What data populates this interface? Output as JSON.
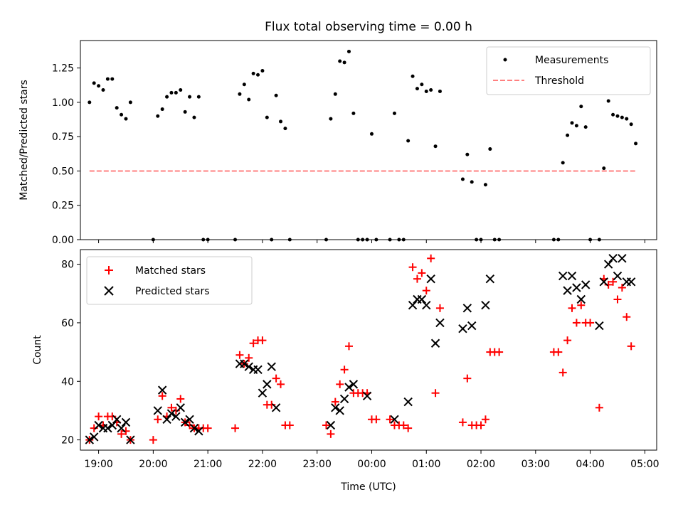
{
  "chart_data": [
    {
      "type": "scatter",
      "title": "Flux total observing time = 0.00 h",
      "xlabel": "",
      "ylabel": "Matched/Predicted stars",
      "ylim": [
        0,
        1.45
      ],
      "xlim": [
        "18:40",
        "05:13"
      ],
      "yticks": [
        "0.00",
        "0.25",
        "0.50",
        "0.75",
        "1.00",
        "1.25"
      ],
      "legend_position": "top-right",
      "series": [
        {
          "name": "Measurements",
          "color": "#000000",
          "points": [
            [
              "18:50",
              1.0
            ],
            [
              "18:55",
              1.14
            ],
            [
              "19:00",
              1.12
            ],
            [
              "19:05",
              1.09
            ],
            [
              "19:10",
              1.17
            ],
            [
              "19:15",
              1.17
            ],
            [
              "19:20",
              0.96
            ],
            [
              "19:25",
              0.91
            ],
            [
              "19:30",
              0.88
            ],
            [
              "19:35",
              1.0
            ],
            [
              "20:00",
              0.0
            ],
            [
              "20:05",
              0.9
            ],
            [
              "20:10",
              0.95
            ],
            [
              "20:15",
              1.04
            ],
            [
              "20:20",
              1.07
            ],
            [
              "20:25",
              1.07
            ],
            [
              "20:30",
              1.09
            ],
            [
              "20:35",
              0.93
            ],
            [
              "20:40",
              1.04
            ],
            [
              "20:45",
              0.89
            ],
            [
              "20:50",
              1.04
            ],
            [
              "20:55",
              0.0
            ],
            [
              "21:00",
              0.0
            ],
            [
              "21:30",
              0.0
            ],
            [
              "21:35",
              1.06
            ],
            [
              "21:40",
              1.13
            ],
            [
              "21:45",
              1.02
            ],
            [
              "21:50",
              1.21
            ],
            [
              "21:55",
              1.2
            ],
            [
              "22:00",
              1.23
            ],
            [
              "22:05",
              0.89
            ],
            [
              "22:10",
              0.0
            ],
            [
              "22:15",
              1.05
            ],
            [
              "22:20",
              0.86
            ],
            [
              "22:25",
              0.81
            ],
            [
              "22:30",
              0.0
            ],
            [
              "23:10",
              0.0
            ],
            [
              "23:15",
              0.88
            ],
            [
              "23:20",
              1.06
            ],
            [
              "23:25",
              1.3
            ],
            [
              "23:30",
              1.29
            ],
            [
              "23:35",
              1.37
            ],
            [
              "23:40",
              0.92
            ],
            [
              "23:45",
              0.0
            ],
            [
              "23:50",
              0.0
            ],
            [
              "23:55",
              0.0
            ],
            [
              "00:00",
              0.77
            ],
            [
              "00:05",
              0.0
            ],
            [
              "00:20",
              0.0
            ],
            [
              "00:25",
              0.92
            ],
            [
              "00:30",
              0.0
            ],
            [
              "00:35",
              0.0
            ],
            [
              "00:40",
              0.72
            ],
            [
              "00:45",
              1.19
            ],
            [
              "00:50",
              1.1
            ],
            [
              "00:55",
              1.13
            ],
            [
              "01:00",
              1.08
            ],
            [
              "01:05",
              1.09
            ],
            [
              "01:10",
              0.68
            ],
            [
              "01:15",
              1.08
            ],
            [
              "01:40",
              0.44
            ],
            [
              "01:45",
              0.62
            ],
            [
              "01:50",
              0.42
            ],
            [
              "01:55",
              0.0
            ],
            [
              "02:00",
              0.0
            ],
            [
              "02:05",
              0.4
            ],
            [
              "02:10",
              0.66
            ],
            [
              "02:15",
              0.0
            ],
            [
              "02:20",
              0.0
            ],
            [
              "03:20",
              0.0
            ],
            [
              "03:25",
              0.0
            ],
            [
              "03:30",
              0.56
            ],
            [
              "03:35",
              0.76
            ],
            [
              "03:40",
              0.85
            ],
            [
              "03:45",
              0.83
            ],
            [
              "03:50",
              0.97
            ],
            [
              "03:55",
              0.82
            ],
            [
              "04:00",
              0.0
            ],
            [
              "04:10",
              0.0
            ],
            [
              "04:15",
              0.52
            ],
            [
              "04:20",
              1.01
            ],
            [
              "04:25",
              0.91
            ],
            [
              "04:30",
              0.9
            ],
            [
              "04:35",
              0.89
            ],
            [
              "04:40",
              0.88
            ],
            [
              "04:45",
              0.84
            ],
            [
              "04:50",
              0.7
            ]
          ]
        },
        {
          "name": "Threshold",
          "color": "#ff8080",
          "style": "dashed",
          "points": [
            [
              "18:50",
              0.5
            ],
            [
              "04:50",
              0.5
            ]
          ]
        }
      ]
    },
    {
      "type": "scatter",
      "title": "",
      "xlabel": "Time (UTC)",
      "ylabel": "Count",
      "ylim": [
        16.5,
        85
      ],
      "xlim": [
        "18:40",
        "05:13"
      ],
      "yticks": [
        "20",
        "40",
        "60",
        "80"
      ],
      "xticks": [
        "19:00",
        "20:00",
        "21:00",
        "22:00",
        "23:00",
        "00:00",
        "01:00",
        "02:00",
        "03:00",
        "04:00",
        "05:00"
      ],
      "legend_position": "top-left",
      "series": [
        {
          "name": "Matched stars",
          "color": "#ff0000",
          "marker": "plus",
          "points": [
            [
              "18:50",
              20
            ],
            [
              "18:55",
              24
            ],
            [
              "19:00",
              28
            ],
            [
              "19:05",
              25
            ],
            [
              "19:10",
              28
            ],
            [
              "19:15",
              28
            ],
            [
              "19:20",
              26
            ],
            [
              "19:25",
              22
            ],
            [
              "19:30",
              23
            ],
            [
              "19:35",
              20
            ],
            [
              "20:00",
              20
            ],
            [
              "20:05",
              27
            ],
            [
              "20:10",
              35
            ],
            [
              "20:15",
              28
            ],
            [
              "20:20",
              31
            ],
            [
              "20:25",
              30
            ],
            [
              "20:30",
              34
            ],
            [
              "20:35",
              26
            ],
            [
              "20:40",
              25
            ],
            [
              "20:45",
              24
            ],
            [
              "20:50",
              24
            ],
            [
              "20:55",
              24
            ],
            [
              "21:00",
              24
            ],
            [
              "21:30",
              24
            ],
            [
              "21:35",
              49
            ],
            [
              "21:40",
              46
            ],
            [
              "21:45",
              48
            ],
            [
              "21:50",
              53
            ],
            [
              "21:55",
              54
            ],
            [
              "22:00",
              54
            ],
            [
              "22:05",
              32
            ],
            [
              "22:10",
              32
            ],
            [
              "22:15",
              41
            ],
            [
              "22:20",
              39
            ],
            [
              "22:25",
              25
            ],
            [
              "22:30",
              25
            ],
            [
              "23:10",
              25
            ],
            [
              "23:15",
              22
            ],
            [
              "23:20",
              33
            ],
            [
              "23:25",
              39
            ],
            [
              "23:30",
              44
            ],
            [
              "23:35",
              52
            ],
            [
              "23:40",
              36
            ],
            [
              "23:45",
              36
            ],
            [
              "23:50",
              36
            ],
            [
              "23:55",
              36
            ],
            [
              "00:00",
              27
            ],
            [
              "00:05",
              27
            ],
            [
              "00:20",
              27
            ],
            [
              "00:25",
              25
            ],
            [
              "00:30",
              25
            ],
            [
              "00:35",
              25
            ],
            [
              "00:40",
              24
            ],
            [
              "00:45",
              79
            ],
            [
              "00:50",
              75
            ],
            [
              "00:55",
              77
            ],
            [
              "01:00",
              71
            ],
            [
              "01:05",
              82
            ],
            [
              "01:10",
              36
            ],
            [
              "01:15",
              65
            ],
            [
              "01:40",
              26
            ],
            [
              "01:45",
              41
            ],
            [
              "01:50",
              25
            ],
            [
              "01:55",
              25
            ],
            [
              "02:00",
              25
            ],
            [
              "02:05",
              27
            ],
            [
              "02:10",
              50
            ],
            [
              "02:15",
              50
            ],
            [
              "02:20",
              50
            ],
            [
              "03:20",
              50
            ],
            [
              "03:25",
              50
            ],
            [
              "03:30",
              43
            ],
            [
              "03:35",
              54
            ],
            [
              "03:40",
              65
            ],
            [
              "03:45",
              60
            ],
            [
              "03:50",
              66
            ],
            [
              "03:55",
              60
            ],
            [
              "04:00",
              60
            ],
            [
              "04:10",
              31
            ],
            [
              "04:15",
              75
            ],
            [
              "04:20",
              73
            ],
            [
              "04:25",
              74
            ],
            [
              "04:30",
              68
            ],
            [
              "04:35",
              72
            ],
            [
              "04:40",
              62
            ],
            [
              "04:45",
              52
            ]
          ]
        },
        {
          "name": "Predicted stars",
          "color": "#000000",
          "marker": "x",
          "points": [
            [
              "18:50",
              20
            ],
            [
              "18:55",
              21
            ],
            [
              "19:00",
              25
            ],
            [
              "19:05",
              24
            ],
            [
              "19:10",
              24
            ],
            [
              "19:15",
              25
            ],
            [
              "19:20",
              27
            ],
            [
              "19:25",
              24
            ],
            [
              "19:30",
              26
            ],
            [
              "19:35",
              20
            ],
            [
              "20:05",
              30
            ],
            [
              "20:10",
              37
            ],
            [
              "20:15",
              27
            ],
            [
              "20:20",
              29
            ],
            [
              "20:25",
              28
            ],
            [
              "20:30",
              31
            ],
            [
              "20:35",
              26
            ],
            [
              "20:40",
              27
            ],
            [
              "20:45",
              24
            ],
            [
              "20:50",
              23
            ],
            [
              "21:35",
              46
            ],
            [
              "21:40",
              46
            ],
            [
              "21:45",
              45
            ],
            [
              "21:50",
              44
            ],
            [
              "21:55",
              44
            ],
            [
              "22:00",
              36
            ],
            [
              "22:05",
              39
            ],
            [
              "22:10",
              45
            ],
            [
              "22:15",
              31
            ],
            [
              "23:15",
              25
            ],
            [
              "23:20",
              31
            ],
            [
              "23:25",
              30
            ],
            [
              "23:30",
              34
            ],
            [
              "23:35",
              38
            ],
            [
              "23:40",
              39
            ],
            [
              "23:55",
              35
            ],
            [
              "00:25",
              27
            ],
            [
              "00:40",
              33
            ],
            [
              "00:45",
              66
            ],
            [
              "00:50",
              68
            ],
            [
              "00:55",
              68
            ],
            [
              "01:00",
              66
            ],
            [
              "01:05",
              75
            ],
            [
              "01:10",
              53
            ],
            [
              "01:15",
              60
            ],
            [
              "01:40",
              58
            ],
            [
              "01:45",
              65
            ],
            [
              "01:50",
              59
            ],
            [
              "02:05",
              66
            ],
            [
              "02:10",
              75
            ],
            [
              "03:30",
              76
            ],
            [
              "03:35",
              71
            ],
            [
              "03:40",
              76
            ],
            [
              "03:45",
              72
            ],
            [
              "03:50",
              68
            ],
            [
              "03:55",
              73
            ],
            [
              "04:10",
              59
            ],
            [
              "04:15",
              74
            ],
            [
              "04:20",
              80
            ],
            [
              "04:25",
              82
            ],
            [
              "04:30",
              76
            ],
            [
              "04:35",
              82
            ],
            [
              "04:40",
              74
            ],
            [
              "04:45",
              74
            ]
          ]
        }
      ]
    }
  ]
}
